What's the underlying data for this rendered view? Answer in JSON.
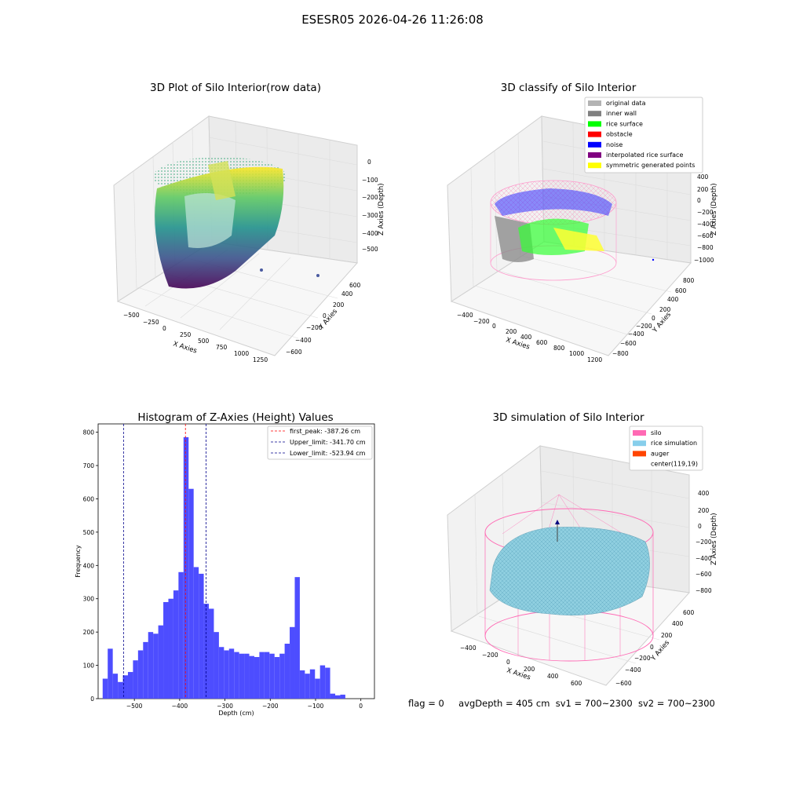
{
  "figure": {
    "title": "ESESR05 2026-04-26 11:26:08"
  },
  "plot3d_raw": {
    "title": "3D Plot of Silo Interior(row data)",
    "xlabel": "X Axies",
    "ylabel": "Y Axies",
    "zlabel": "Z Axies (Depth)",
    "xticks": [
      "−500",
      "−250",
      "0",
      "250",
      "500",
      "750",
      "1000",
      "1250"
    ],
    "yticks": [
      "600",
      "400",
      "200",
      "0",
      "−200",
      "−400",
      "−600"
    ],
    "zticks": [
      "0",
      "−100",
      "−200",
      "−300",
      "−400",
      "−500"
    ],
    "colormap": "viridis"
  },
  "plot3d_classify": {
    "title": "3D classify of Silo Interior",
    "xlabel": "X Axies",
    "ylabel": "Y Axies",
    "zlabel": "Z Axies (Depth)",
    "xticks": [
      "−400",
      "−200",
      "0",
      "200",
      "400",
      "600",
      "800",
      "1000",
      "1200"
    ],
    "yticks": [
      "800",
      "600",
      "400",
      "200",
      "0",
      "−200",
      "−400",
      "−600",
      "−800"
    ],
    "zticks": [
      "400",
      "200",
      "0",
      "−200",
      "−400",
      "−600",
      "−800",
      "−1000"
    ],
    "legend": [
      {
        "label": "original data",
        "color": "#b3b3b3"
      },
      {
        "label": "inner wall",
        "color": "#808080"
      },
      {
        "label": "rice surface",
        "color": "#00ff00"
      },
      {
        "label": "obstacle",
        "color": "#ff0000"
      },
      {
        "label": "noise",
        "color": "#0000ff"
      },
      {
        "label": "interpolated rice surface",
        "color": "#800080"
      },
      {
        "label": "symmetric generated points",
        "color": "#ffff00"
      }
    ]
  },
  "plot3d_sim": {
    "title": "3D simulation of Silo Interior",
    "xlabel": "X Axies",
    "ylabel": "Y Axies",
    "zlabel": "Z Axies (Depth)",
    "xticks": [
      "−400",
      "−200",
      "0",
      "200",
      "400",
      "600"
    ],
    "yticks": [
      "600",
      "400",
      "200",
      "0",
      "−200",
      "−400",
      "−600"
    ],
    "zticks": [
      "400",
      "200",
      "0",
      "−200",
      "−400",
      "−600",
      "−800"
    ],
    "legend": [
      {
        "label": "silo",
        "color": "#ff69b4"
      },
      {
        "label": "rice simulation",
        "color": "#87ceeb"
      },
      {
        "label": "auger",
        "color": "#ff4500"
      },
      {
        "label": "center(119,19)",
        "color": ""
      }
    ]
  },
  "status": {
    "flag": "flag = 0",
    "avg_depth": "avgDepth = 405 cm",
    "sv1": "sv1 = 700~2300",
    "sv2": "sv2 = 700~2300"
  },
  "chart_data": {
    "type": "bar",
    "title": "Histogram of Z-Axies (Height) Values",
    "xlabel": "Depth (cm)",
    "ylabel": "Frequency",
    "xlim": [
      -580,
      30
    ],
    "ylim": [
      0,
      825
    ],
    "xticks": [
      -500,
      -400,
      -300,
      -200,
      -100,
      0
    ],
    "yticks": [
      0,
      100,
      200,
      300,
      400,
      500,
      600,
      700,
      800
    ],
    "bar_color": "#4d4dff",
    "bin_start": -570,
    "bin_width": 11.16,
    "values": [
      60,
      150,
      75,
      50,
      70,
      80,
      115,
      145,
      170,
      200,
      195,
      220,
      290,
      300,
      325,
      380,
      785,
      630,
      395,
      375,
      285,
      270,
      200,
      155,
      145,
      150,
      140,
      135,
      135,
      128,
      125,
      140,
      140,
      135,
      125,
      135,
      165,
      215,
      365,
      85,
      75,
      88,
      60,
      100,
      93,
      15,
      10,
      12
    ],
    "vlines": [
      {
        "label": "first_peak: -387.26 cm",
        "value": -387.26,
        "color": "#ff0000"
      },
      {
        "label": "Upper_limit: -341.70 cm",
        "value": -341.7,
        "color": "#00008b"
      },
      {
        "label": "Lower_limit: -523.94 cm",
        "value": -523.94,
        "color": "#00008b"
      }
    ],
    "legend_position": "top-right"
  }
}
